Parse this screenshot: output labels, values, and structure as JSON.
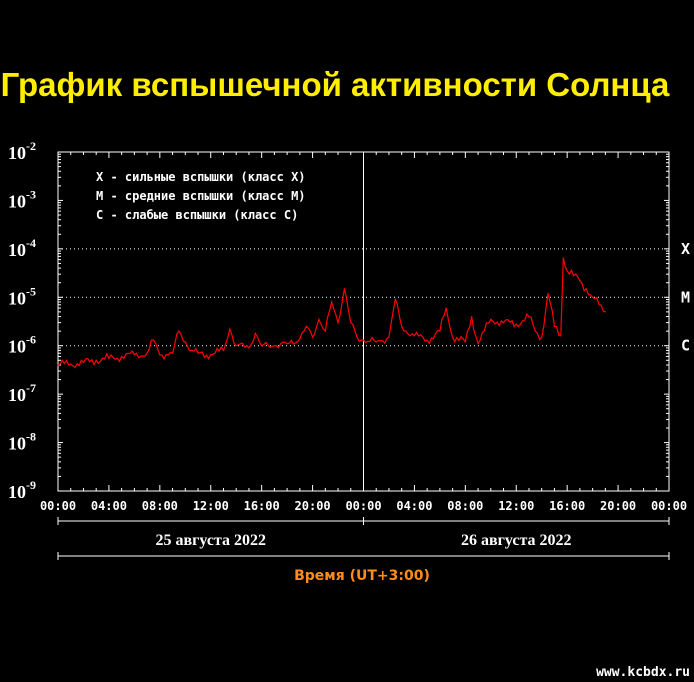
{
  "chart_data": {
    "type": "line",
    "title": "График вспышечной активности Солнца",
    "xlabel": "Время (UT+3:00)",
    "y_scale": "log",
    "ylim_exponents": [
      -9,
      -2
    ],
    "y_tick_labels": [
      {
        "base": "10",
        "exp": "-2"
      },
      {
        "base": "10",
        "exp": "-3"
      },
      {
        "base": "10",
        "exp": "-4"
      },
      {
        "base": "10",
        "exp": "-5"
      },
      {
        "base": "10",
        "exp": "-6"
      },
      {
        "base": "10",
        "exp": "-7"
      },
      {
        "base": "10",
        "exp": "-8"
      },
      {
        "base": "10",
        "exp": "-9"
      }
    ],
    "x_tick_labels": [
      "00:00",
      "04:00",
      "08:00",
      "12:00",
      "16:00",
      "20:00",
      "00:00",
      "04:00",
      "08:00",
      "12:00",
      "16:00",
      "20:00",
      "00:00"
    ],
    "days": [
      "25 августа 2022",
      "26 августа 2022"
    ],
    "flare_levels": [
      {
        "label": "X",
        "exp": -4
      },
      {
        "label": "M",
        "exp": -5
      },
      {
        "label": "C",
        "exp": -6
      }
    ],
    "legend": [
      "X - сильные вспышки (класс X)",
      "M - средние вспышки (класс M)",
      "C - слабые вспышки (класс C)"
    ],
    "series": [
      {
        "color": "#ff0000",
        "x_hours": [
          0,
          1,
          2,
          3,
          4,
          5,
          6,
          7,
          7.5,
          8,
          9,
          9.5,
          10,
          10.5,
          11,
          12,
          13,
          13.5,
          14,
          15,
          15.5,
          16,
          17,
          18,
          19,
          19.5,
          20,
          20.5,
          21,
          21.5,
          22,
          22.5,
          23,
          23.5,
          24,
          25,
          26,
          26.5,
          27,
          28,
          29,
          30,
          30.5,
          31,
          32,
          32.5,
          33,
          34,
          35,
          36,
          37,
          37.5,
          38,
          38.5,
          39,
          39.5,
          39.7,
          40,
          40.5,
          41,
          41.5,
          42,
          42.5,
          43
        ],
        "y_values": [
          4e-07,
          4.2e-07,
          4.5e-07,
          5e-07,
          5.5e-07,
          6e-07,
          6.5e-07,
          7e-07,
          1.3e-06,
          6.5e-07,
          7e-07,
          2e-06,
          1.2e-06,
          8e-07,
          7e-07,
          6.5e-07,
          8e-07,
          2.2e-06,
          1e-06,
          9e-07,
          1.8e-06,
          1e-06,
          1e-06,
          1.1e-06,
          1.4e-06,
          2.5e-06,
          1.5e-06,
          3.5e-06,
          2e-06,
          8e-06,
          3e-06,
          1.5e-05,
          3e-06,
          1.5e-06,
          1.3e-06,
          1.2e-06,
          1.5e-06,
          9e-06,
          2.5e-06,
          1.6e-06,
          1.3e-06,
          2e-06,
          6e-06,
          1.5e-06,
          1.2e-06,
          4e-06,
          1.1e-06,
          3.5e-06,
          3e-06,
          2.8e-06,
          4e-06,
          2e-06,
          1.5e-06,
          1.2e-05,
          2.5e-06,
          1.6e-06,
          6.5e-05,
          3.5e-05,
          2.8e-05,
          2.2e-05,
          1.5e-05,
          1e-05,
          7e-06,
          5e-06
        ]
      }
    ]
  },
  "watermark": "www.kcbdx.ru"
}
